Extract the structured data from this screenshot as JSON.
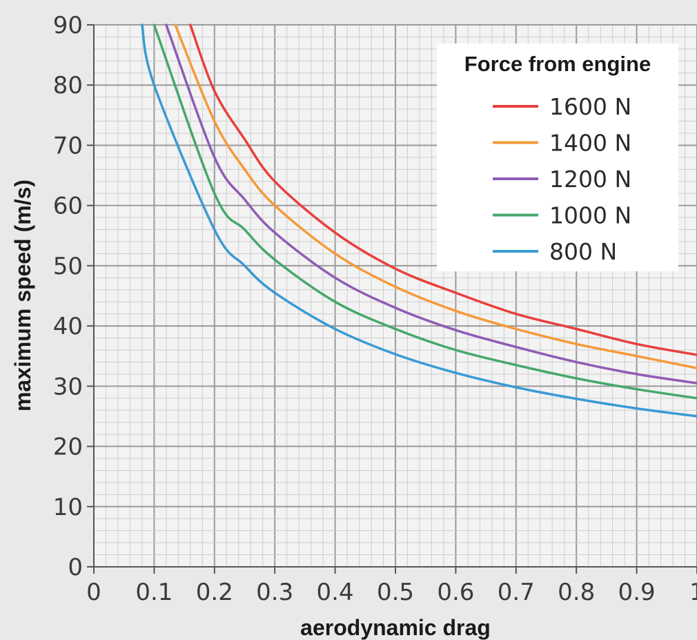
{
  "chart_data": {
    "type": "line",
    "title": "",
    "xlabel": "aerodynamic drag",
    "ylabel": "maximum speed (m/s)",
    "xlim": [
      0,
      1
    ],
    "ylim": [
      0,
      90
    ],
    "x_ticks": [
      "0",
      "0.1",
      "0.2",
      "0.3",
      "0.4",
      "0.5",
      "0.6",
      "0.7",
      "0.8",
      "0.9",
      "1"
    ],
    "y_ticks": [
      "0",
      "10",
      "20",
      "30",
      "40",
      "50",
      "60",
      "70",
      "80",
      "90"
    ],
    "grid": true,
    "legend": {
      "title": "Force from engine",
      "position": "top-right"
    },
    "series": [
      {
        "name": "1600 N",
        "color": "#e8403c",
        "x": [
          0.16,
          0.2,
          0.25,
          0.3,
          0.4,
          0.5,
          0.6,
          0.7,
          0.8,
          0.9,
          1.0
        ],
        "y": [
          90,
          79,
          71,
          64,
          55.5,
          49.5,
          45.5,
          42,
          39.5,
          37,
          35.2
        ]
      },
      {
        "name": "1400 N",
        "color": "#f59a3a",
        "x": [
          0.135,
          0.2,
          0.25,
          0.3,
          0.4,
          0.5,
          0.6,
          0.7,
          0.8,
          0.9,
          1.0
        ],
        "y": [
          90,
          74,
          66,
          60,
          52,
          46.5,
          42.5,
          39.5,
          37,
          35,
          33
        ]
      },
      {
        "name": "1200 N",
        "color": "#8e5cb5",
        "x": [
          0.12,
          0.2,
          0.25,
          0.3,
          0.4,
          0.5,
          0.6,
          0.7,
          0.8,
          0.9,
          1.0
        ],
        "y": [
          90,
          68,
          61,
          55.5,
          48,
          43,
          39.3,
          36.5,
          34,
          32,
          30.5
        ]
      },
      {
        "name": "1000 N",
        "color": "#45a86b",
        "x": [
          0.1,
          0.2,
          0.25,
          0.3,
          0.4,
          0.5,
          0.6,
          0.7,
          0.8,
          0.9,
          1.0
        ],
        "y": [
          90,
          62,
          56,
          51,
          44,
          39.5,
          36,
          33.5,
          31.3,
          29.5,
          28
        ]
      },
      {
        "name": "800 N",
        "color": "#3a9ad4",
        "x": [
          0.08,
          0.1,
          0.2,
          0.25,
          0.3,
          0.4,
          0.5,
          0.6,
          0.7,
          0.8,
          0.9,
          1.0
        ],
        "y": [
          90,
          80,
          56,
          50,
          45.5,
          39.5,
          35.3,
          32.2,
          29.8,
          27.9,
          26.3,
          25
        ]
      }
    ]
  }
}
